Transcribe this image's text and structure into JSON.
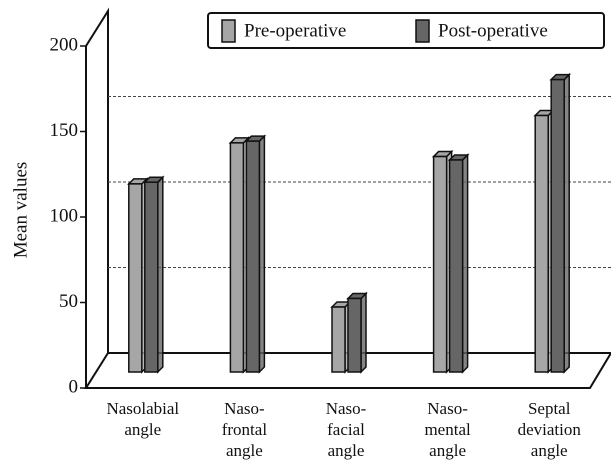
{
  "chart_data": {
    "type": "bar3d",
    "categories": [
      "Nasolabial\nangle",
      "Naso-\nfrontal\nangle",
      "Naso-\nfacial\nangle",
      "Naso-\nmental\nangle",
      "Septal\ndeviation\nangle"
    ],
    "series": [
      {
        "name": "Pre-operative",
        "color": "#a6a6a6",
        "values": [
          110,
          134,
          38,
          126,
          150
        ]
      },
      {
        "name": "Post-operative",
        "color": "#666666",
        "values": [
          111,
          135,
          43,
          124,
          171
        ]
      }
    ],
    "y_label": "Mean values",
    "ylim": [
      0,
      200
    ],
    "yticks": [
      0,
      50,
      100,
      150,
      200
    ],
    "grid": true,
    "legend": "top-right"
  }
}
